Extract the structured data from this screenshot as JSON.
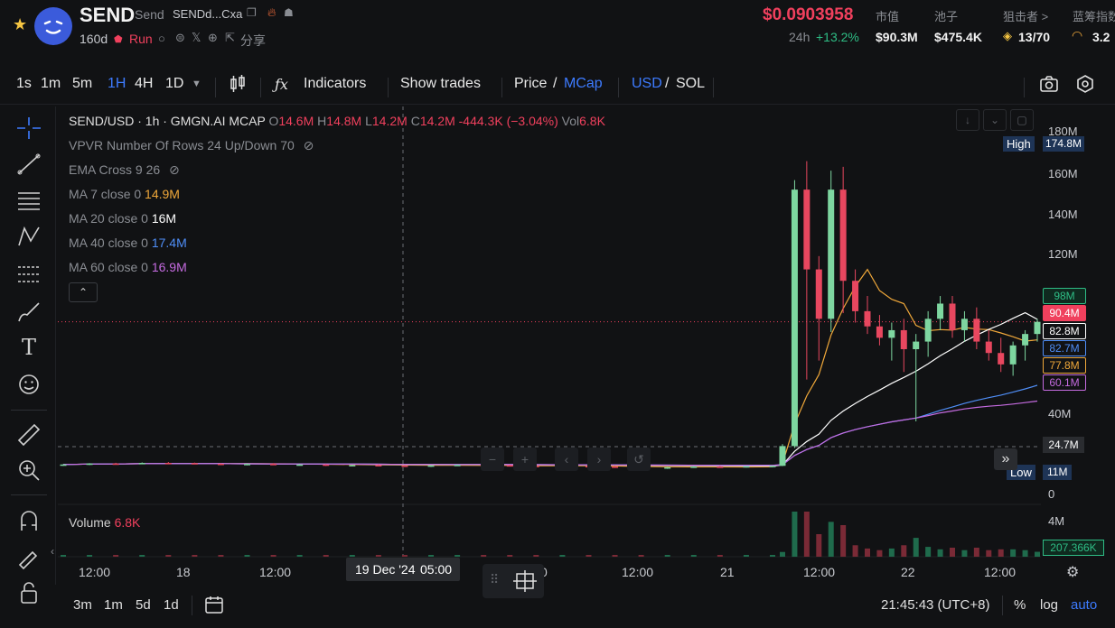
{
  "token": {
    "symbol": "SEND",
    "name": "Send",
    "address_short": "SENDd...Cxa",
    "age": "160d",
    "tag": "Run",
    "share_label": "分享"
  },
  "price": {
    "current": "$0.0903958",
    "change_label": "24h",
    "change_value": "+13.2%"
  },
  "stats": [
    {
      "label": "市值",
      "value": "$90.3M"
    },
    {
      "label": "池子",
      "value": "$475.4K"
    },
    {
      "label": "狙击者 >",
      "value": "13/70"
    },
    {
      "label": "蓝筹指数",
      "value": "3.2"
    }
  ],
  "toolbar": {
    "intervals": [
      "1s",
      "1m",
      "5m",
      "1H",
      "4H",
      "1D"
    ],
    "active_interval": "1H",
    "indicators_label": "Indicators",
    "show_trades_label": "Show trades",
    "price_label": "Price",
    "slash": "/",
    "mcap_label": "MCap",
    "usd_label": "USD",
    "sol_label": "SOL"
  },
  "legend": {
    "title": "SEND/USD · 1h · GMGN.AI MCAP",
    "o_label": "O",
    "o_val": "14.6M",
    "h_label": "H",
    "h_val": "14.8M",
    "l_label": "L",
    "l_val": "14.2M",
    "c_label": "C",
    "c_val": "14.2M",
    "change": "-444.3K (−3.04%)",
    "vol_label": "Vol",
    "vol_val": "6.8K",
    "vpvr": "VPVR Number Of Rows 24 Up/Down 70",
    "ema": "EMA Cross 9 26",
    "ma": [
      {
        "label": "MA 7 close 0",
        "value": "14.9M",
        "color": "#f0a83a"
      },
      {
        "label": "MA 20 close 0",
        "value": "16M",
        "color": "#ffffff"
      },
      {
        "label": "MA 40 close 0",
        "value": "17.4M",
        "color": "#4f8ef7"
      },
      {
        "label": "MA 60 close 0",
        "value": "16.9M",
        "color": "#c56be0"
      }
    ],
    "volume_label": "Volume",
    "volume_val": "6.8K"
  },
  "yaxis": {
    "ticks": [
      "180M",
      "160M",
      "140M",
      "120M",
      "40M",
      "0"
    ],
    "high_label": "High",
    "high_val": "174.8M",
    "low_label": "Low",
    "low_val": "11M",
    "tags": [
      {
        "value": "98M",
        "color": "#2ebd85",
        "bg": "#0f2a1f"
      },
      {
        "value": "90.4M",
        "color": "#ffffff",
        "bg": "#f0405d"
      },
      {
        "value": "82.8M",
        "color": "#ffffff",
        "bg": "#111214"
      },
      {
        "value": "82.7M",
        "color": "#4f8ef7",
        "bg": "#111214"
      },
      {
        "value": "77.8M",
        "color": "#f0a83a",
        "bg": "#111214"
      },
      {
        "value": "60.1M",
        "color": "#c56be0",
        "bg": "#111214"
      }
    ],
    "crosshair_val": "24.7M",
    "vol_tick": "4M",
    "vol_current": "207.366K"
  },
  "xaxis": {
    "ticks": [
      "12:00",
      "18",
      "12:00",
      "12:00",
      "21",
      "12:00",
      "22",
      "12:00"
    ],
    "crosshair_label": "19 Dec '24",
    "crosshair_time": "05:00",
    "partial_tick": "0"
  },
  "bottom": {
    "ranges": [
      "3m",
      "1m",
      "5d",
      "1d"
    ],
    "clock": "21:45:43 (UTC+8)",
    "percent": "%",
    "log": "log",
    "auto": "auto"
  },
  "chart_data": {
    "type": "candlestick",
    "title": "SEND/USD · 1h · GMGN.AI MCAP",
    "ylim": [
      0,
      190
    ],
    "y_unit": "M",
    "series": [
      {
        "name": "MA 7 close 0",
        "last": 77.8
      },
      {
        "name": "MA 20 close 0",
        "last": 82.8
      },
      {
        "name": "MA 40 close 0",
        "last": 82.7
      },
      {
        "name": "MA 60 close 0",
        "last": 60.1
      }
    ],
    "high": 174.8,
    "low": 11,
    "last_close": 90.4,
    "candles": [
      [
        15,
        15.5,
        14.6,
        15.3
      ],
      [
        15.3,
        16,
        15,
        15.8
      ],
      [
        15.8,
        16.2,
        15.4,
        15.6
      ],
      [
        15.6,
        16.4,
        15.5,
        16.1
      ],
      [
        16.1,
        16.6,
        15.8,
        16
      ],
      [
        16,
        16.3,
        15.5,
        15.7
      ],
      [
        15.7,
        16,
        15.2,
        15.4
      ],
      [
        15.4,
        15.8,
        14.9,
        15.6
      ],
      [
        15.6,
        16,
        15.1,
        15.2
      ],
      [
        15.2,
        15.6,
        14.8,
        15.3
      ],
      [
        15.3,
        15.5,
        14.5,
        14.8
      ],
      [
        14.8,
        15.2,
        14.4,
        15
      ],
      [
        15,
        15.4,
        14.6,
        14.7
      ],
      [
        14.7,
        15,
        14.2,
        14.5
      ],
      [
        14.5,
        14.9,
        14,
        14.8
      ],
      [
        14.8,
        15.3,
        14.5,
        15.1
      ],
      [
        15.1,
        15.4,
        14.7,
        14.9
      ],
      [
        14.9,
        15.2,
        14.4,
        14.6
      ],
      [
        14.6,
        14.9,
        14.1,
        14.3
      ],
      [
        14.3,
        14.7,
        13.8,
        14.5
      ],
      [
        14.5,
        14.8,
        14,
        14.2
      ],
      [
        14.2,
        14.6,
        13.6,
        14
      ],
      [
        14,
        14.3,
        13.2,
        13.5
      ],
      [
        13.5,
        14,
        13,
        13.8
      ],
      [
        13.8,
        14.4,
        13.5,
        14.2
      ],
      [
        14.2,
        14.6,
        13.9,
        14.1
      ],
      [
        14.1,
        14.5,
        13.7,
        14.4
      ],
      [
        14.4,
        14.8,
        14.2,
        14.6
      ],
      [
        14.6,
        26,
        14.4,
        25
      ],
      [
        25,
        165,
        24,
        160
      ],
      [
        160,
        175,
        60,
        118
      ],
      [
        118,
        125,
        70,
        92
      ],
      [
        92,
        170,
        85,
        160
      ],
      [
        160,
        172,
        95,
        112
      ],
      [
        112,
        118,
        90,
        96
      ],
      [
        96,
        104,
        84,
        88
      ],
      [
        88,
        94,
        78,
        82
      ],
      [
        82,
        90,
        70,
        86
      ],
      [
        86,
        92,
        64,
        76
      ],
      [
        76,
        84,
        38,
        80
      ],
      [
        80,
        96,
        72,
        92
      ],
      [
        92,
        104,
        86,
        100
      ],
      [
        100,
        104,
        82,
        86
      ],
      [
        86,
        96,
        80,
        92
      ],
      [
        92,
        98,
        76,
        80
      ],
      [
        80,
        86,
        70,
        74
      ],
      [
        74,
        82,
        64,
        68
      ],
      [
        68,
        80,
        62,
        78
      ],
      [
        78,
        86,
        70,
        84
      ],
      [
        84,
        92,
        80,
        90.4
      ]
    ]
  }
}
